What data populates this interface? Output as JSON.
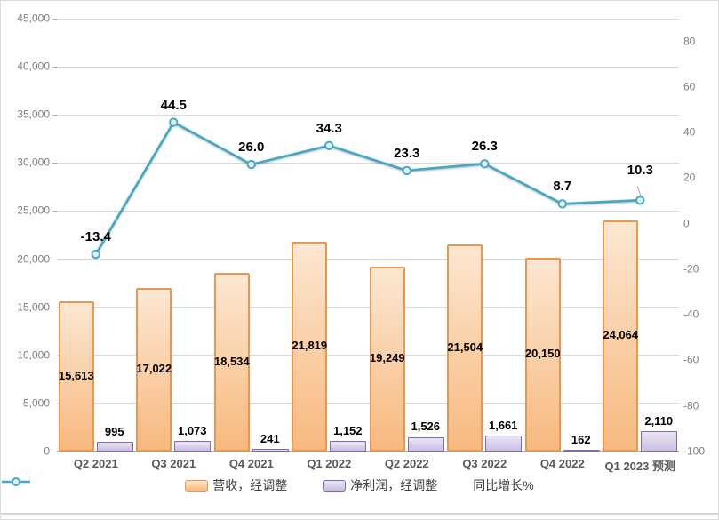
{
  "chart_data": {
    "type": "combo-bar-line",
    "categories": [
      "Q2 2021",
      "Q3 2021",
      "Q4 2021",
      "Q1 2022",
      "Q2 2022",
      "Q3 2022",
      "Q4 2022",
      "Q1 2023 预测"
    ],
    "series": [
      {
        "name": "营收，经调整",
        "type": "bar",
        "axis": "left",
        "values": [
          15613,
          17022,
          18534,
          21819,
          19249,
          21504,
          20150,
          24064
        ],
        "labels": [
          "15,613",
          "17,022",
          "18,534",
          "21,819",
          "19,249",
          "21,504",
          "20,150",
          "24,064"
        ],
        "label_position": "inside-center",
        "fill_top": "#FCE7D1",
        "fill_bottom": "#F8B97F",
        "border": "#E9964F"
      },
      {
        "name": "净利润，经调整",
        "type": "bar",
        "axis": "left",
        "values": [
          995,
          1073,
          241,
          1152,
          1526,
          1661,
          162,
          2110
        ],
        "labels": [
          "995",
          "1,073",
          "241",
          "1,152",
          "1,526",
          "1,661",
          "162",
          "2,110"
        ],
        "label_position": "outside-end",
        "fill_top": "#EAE5F4",
        "fill_bottom": "#CBBEE2",
        "border": "#7E6BA8"
      },
      {
        "name": "同比增长%",
        "type": "line",
        "axis": "right",
        "values": [
          -13.4,
          44.5,
          26.0,
          34.3,
          23.3,
          26.3,
          8.7,
          10.3
        ],
        "labels": [
          "-13.4",
          "44.5",
          "26.0",
          "34.3",
          "23.3",
          "26.3",
          "8.7",
          "10.3"
        ],
        "color": "#45A9C5",
        "marker_fill": "#E3F2F8",
        "last_label_leader_color": "#A6A6A6"
      }
    ],
    "left_axis": {
      "min": 0,
      "max": 45000,
      "ticks": [
        {
          "v": 0,
          "label": "0"
        },
        {
          "v": 5000,
          "label": "5,000"
        },
        {
          "v": 10000,
          "label": "10,000"
        },
        {
          "v": 15000,
          "label": "15,000"
        },
        {
          "v": 20000,
          "label": "20,000"
        },
        {
          "v": 25000,
          "label": "25,000"
        },
        {
          "v": 30000,
          "label": "30,000"
        },
        {
          "v": 35000,
          "label": "35,000"
        },
        {
          "v": 40000,
          "label": "40,000"
        },
        {
          "v": 45000,
          "label": "45,000"
        }
      ]
    },
    "right_axis": {
      "min": -100,
      "max": 90,
      "ticks": [
        {
          "v": -100,
          "label": "-100"
        },
        {
          "v": -80,
          "label": "-80"
        },
        {
          "v": -60,
          "label": "-60"
        },
        {
          "v": -40,
          "label": "-40"
        },
        {
          "v": -20,
          "label": "-20"
        },
        {
          "v": 0,
          "label": "0"
        },
        {
          "v": 20,
          "label": "20"
        },
        {
          "v": 40,
          "label": "40"
        },
        {
          "v": 60,
          "label": "60"
        },
        {
          "v": 80,
          "label": "80"
        }
      ]
    },
    "grid": "horizontal",
    "legend_position": "bottom",
    "legend": [
      {
        "swatch": "bar-orange",
        "label": "营收，经调整"
      },
      {
        "swatch": "bar-purple",
        "label": "净利润，经调整"
      },
      {
        "swatch": "line-teal",
        "label": "同比增长%"
      }
    ],
    "colors": {
      "gridline": "#D9D9D9",
      "axis_text": "#808080",
      "category_text": "#595959",
      "data_label_text": "#000000"
    }
  }
}
